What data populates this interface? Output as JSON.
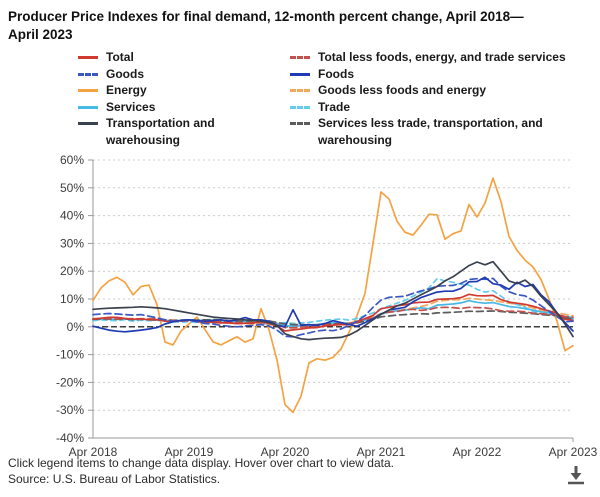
{
  "title": "Producer Price Indexes for final demand, 12-month percent change, April 2018—April 2023",
  "legend": {
    "columns": [
      [
        "Total",
        "Goods",
        "Energy",
        "Services",
        "Transportation and warehousing"
      ],
      [
        "Total less foods, energy, and trade services",
        "Foods",
        "Goods less foods and energy",
        "Trade",
        "Services less trade, transportation, and warehousing"
      ]
    ]
  },
  "footer": {
    "instructions": "Click legend items to change data display. Hover over chart to view data.",
    "source": "Source: U.S. Bureau of Labor Statistics.",
    "download_icon": "download-arrow-to-tray"
  },
  "chart_data": {
    "type": "line",
    "title": "Producer Price Indexes for final demand, 12-month percent change, April 2018—April 2023",
    "x_axis": {
      "labels": [
        "Apr 2018",
        "Apr 2019",
        "Apr 2020",
        "Apr 2021",
        "Apr 2022",
        "Apr 2023"
      ],
      "months_total": 61,
      "label_every_months": 12
    },
    "y_axis": {
      "ticks": [
        60,
        50,
        40,
        30,
        20,
        10,
        0,
        -10,
        -20,
        -30,
        -40
      ],
      "unit": "%",
      "min": -40,
      "max": 60
    },
    "grid": {
      "horizontal_dotted": true,
      "grid_color": "#cccccc",
      "axis_color": "#999999",
      "zero_line": {
        "color": "#000000",
        "style": "dashed"
      }
    },
    "legend_position": "top",
    "series": [
      {
        "name": "Energy",
        "color": "#f5a243",
        "dash": "",
        "values": [
          9.5,
          14.0,
          16.5,
          17.8,
          16.0,
          11.5,
          14.5,
          15.0,
          8.0,
          -5.5,
          -6.5,
          -1.5,
          1.0,
          3.5,
          -1.0,
          -5.4,
          -6.5,
          -5.0,
          -3.6,
          -5.5,
          -4.3,
          6.5,
          -1.0,
          -12.0,
          -28.0,
          -30.8,
          -25.0,
          -13.0,
          -11.5,
          -12.0,
          -11.0,
          -8.0,
          -2.0,
          4.0,
          12.0,
          30.0,
          48.5,
          46.0,
          38.0,
          34.0,
          33.0,
          36.5,
          40.5,
          40.3,
          31.5,
          33.5,
          34.5,
          44.0,
          39.5,
          44.5,
          53.5,
          45.0,
          32.5,
          27.5,
          24.0,
          21.5,
          17.0,
          10.0,
          2.0,
          -8.6,
          -6.8
        ]
      },
      {
        "name": "Goods less foods and energy",
        "color": "#f0a85c",
        "dash": "7,4",
        "values": [
          2.5,
          2.6,
          2.7,
          2.8,
          2.8,
          2.9,
          2.9,
          3.0,
          2.8,
          2.6,
          2.4,
          2.2,
          2.0,
          1.8,
          1.6,
          1.5,
          1.4,
          1.3,
          1.2,
          1.1,
          1.0,
          0.9,
          0.8,
          0.6,
          0.3,
          0.2,
          0.3,
          0.4,
          0.6,
          0.8,
          1.0,
          1.2,
          1.4,
          2.0,
          2.8,
          3.8,
          4.6,
          5.3,
          5.8,
          6.2,
          6.8,
          7.3,
          8.0,
          9.2,
          9.5,
          9.7,
          9.8,
          10.2,
          10.0,
          9.7,
          9.5,
          9.0,
          8.5,
          8.2,
          7.5,
          6.8,
          6.0,
          5.5,
          5.0,
          4.5,
          4.0
        ]
      },
      {
        "name": "Trade",
        "color": "#63cbec",
        "dash": "5,4",
        "values": [
          2.2,
          2.5,
          2.3,
          2.2,
          2.6,
          2.0,
          2.4,
          2.2,
          2.4,
          2.0,
          1.8,
          1.7,
          1.8,
          1.6,
          1.8,
          2.0,
          1.8,
          1.5,
          1.2,
          1.8,
          1.6,
          1.4,
          1.0,
          1.2,
          1.5,
          1.2,
          1.4,
          1.6,
          2.0,
          2.4,
          2.6,
          2.8,
          2.4,
          3.0,
          4.0,
          5.0,
          6.5,
          7.5,
          8.5,
          9.5,
          11.0,
          12.5,
          14.0,
          17.3,
          16.5,
          16.0,
          15.3,
          15.0,
          13.5,
          12.5,
          13.0,
          11.0,
          9.0,
          8.0,
          7.0,
          5.5,
          4.8,
          4.5,
          4.2,
          3.8,
          3.5
        ]
      },
      {
        "name": "Services",
        "color": "#49b8e6",
        "dash": "",
        "values": [
          2.7,
          2.8,
          2.8,
          2.7,
          2.9,
          2.5,
          2.8,
          2.5,
          2.4,
          2.3,
          2.2,
          2.3,
          2.4,
          2.3,
          2.4,
          2.5,
          2.3,
          2.0,
          1.8,
          2.1,
          2.0,
          2.2,
          1.8,
          1.2,
          0.4,
          0.2,
          0.4,
          0.5,
          0.8,
          1.2,
          1.4,
          1.4,
          1.2,
          1.6,
          2.4,
          3.0,
          4.8,
          5.2,
          5.8,
          6.0,
          6.4,
          6.8,
          6.5,
          7.8,
          8.0,
          8.2,
          8.6,
          9.4,
          8.8,
          8.5,
          8.7,
          8.0,
          7.3,
          7.0,
          6.5,
          6.0,
          5.4,
          5.0,
          4.6,
          3.2,
          2.9
        ]
      },
      {
        "name": "Services less trade, transportation, and warehousing",
        "color": "#5c5c5c",
        "dash": "7,4",
        "values": [
          2.7,
          2.8,
          2.8,
          2.7,
          2.8,
          2.6,
          2.7,
          2.6,
          2.4,
          2.4,
          2.3,
          2.4,
          2.5,
          2.4,
          2.5,
          2.6,
          2.4,
          2.2,
          2.1,
          2.1,
          2.1,
          2.3,
          2.1,
          1.6,
          1.0,
          0.8,
          0.8,
          0.7,
          0.8,
          1.0,
          1.1,
          1.1,
          1.1,
          1.4,
          2.0,
          2.6,
          3.6,
          3.9,
          4.2,
          4.4,
          4.6,
          4.7,
          4.6,
          5.0,
          5.1,
          5.2,
          5.4,
          5.6,
          5.5,
          5.6,
          5.7,
          5.5,
          5.2,
          5.1,
          4.9,
          4.7,
          4.4,
          4.2,
          4.0,
          3.2,
          2.9
        ]
      },
      {
        "name": "Total less foods, energy, and trade services",
        "color": "#c4524c",
        "dash": "7,4",
        "values": [
          2.9,
          3.0,
          2.9,
          2.8,
          2.9,
          2.9,
          2.8,
          2.8,
          2.8,
          2.5,
          2.3,
          2.0,
          2.2,
          2.1,
          2.1,
          1.7,
          1.9,
          1.7,
          1.5,
          1.3,
          1.5,
          1.5,
          1.4,
          1.0,
          -0.3,
          -0.4,
          -0.1,
          0.1,
          0.3,
          0.7,
          0.8,
          0.9,
          1.1,
          2.0,
          2.8,
          3.1,
          4.6,
          5.3,
          5.5,
          6.1,
          6.3,
          5.9,
          6.2,
          6.9,
          7.0,
          6.9,
          6.6,
          7.0,
          6.9,
          6.8,
          6.4,
          5.8,
          5.6,
          5.6,
          5.4,
          4.9,
          4.7,
          4.5,
          4.4,
          3.7,
          3.4
        ]
      },
      {
        "name": "Total",
        "color": "#d03a30",
        "dash": "",
        "values": [
          2.7,
          3.1,
          3.4,
          3.4,
          3.0,
          2.7,
          2.9,
          2.5,
          2.6,
          2.0,
          1.9,
          2.2,
          2.4,
          1.9,
          1.6,
          1.7,
          1.4,
          1.4,
          1.1,
          1.3,
          1.3,
          2.0,
          1.2,
          0.3,
          -1.5,
          -1.1,
          -0.8,
          -0.4,
          -0.3,
          0.3,
          0.6,
          0.8,
          0.8,
          1.6,
          3.0,
          4.1,
          6.5,
          7.0,
          7.6,
          7.9,
          8.6,
          8.8,
          8.9,
          9.9,
          10.0,
          10.1,
          10.5,
          11.7,
          11.2,
          11.1,
          11.3,
          9.8,
          8.9,
          8.5,
          8.1,
          7.4,
          6.5,
          5.7,
          4.9,
          2.7,
          2.3
        ]
      },
      {
        "name": "Goods",
        "color": "#3b57c4",
        "dash": "7,4",
        "values": [
          4.4,
          4.6,
          4.8,
          4.6,
          4.4,
          4.2,
          4.4,
          3.8,
          3.2,
          2.5,
          2.0,
          2.2,
          2.4,
          1.8,
          1.2,
          1.0,
          0.5,
          0.2,
          0.0,
          0.3,
          0.5,
          0.8,
          0.3,
          -1.2,
          -3.4,
          -3.6,
          -2.8,
          -2.2,
          -1.5,
          -1.2,
          -1.4,
          -0.8,
          0.5,
          2.0,
          4.0,
          7.0,
          9.6,
          10.6,
          10.8,
          11.0,
          12.0,
          12.9,
          13.6,
          14.6,
          14.8,
          14.9,
          15.6,
          17.0,
          17.3,
          17.1,
          17.4,
          14.6,
          12.6,
          11.6,
          11.1,
          9.6,
          7.6,
          5.6,
          3.6,
          1.8,
          2.0
        ]
      },
      {
        "name": "Foods",
        "color": "#1f3bb3",
        "dash": "",
        "values": [
          0.2,
          -0.5,
          -1.2,
          -1.6,
          -1.8,
          -1.5,
          -1.2,
          -0.8,
          -0.3,
          1.0,
          1.8,
          2.3,
          2.5,
          2.2,
          2.0,
          2.2,
          2.5,
          2.0,
          2.5,
          3.3,
          2.5,
          2.5,
          2.0,
          0.5,
          0.0,
          6.1,
          0.5,
          0.8,
          0.5,
          1.2,
          2.2,
          1.5,
          0.8,
          0.2,
          1.5,
          3.0,
          4.5,
          6.0,
          6.5,
          7.0,
          9.0,
          10.5,
          11.5,
          12.5,
          12.8,
          12.8,
          13.8,
          16.2,
          16.3,
          17.8,
          15.5,
          15.0,
          13.5,
          16.0,
          14.5,
          15.2,
          11.5,
          9.0,
          5.0,
          1.5,
          -1.5
        ]
      },
      {
        "name": "Transportation and warehousing",
        "color": "#3a414f",
        "dash": "",
        "values": [
          6.3,
          6.5,
          6.7,
          6.8,
          6.9,
          7.0,
          7.2,
          7.0,
          6.8,
          6.5,
          6.0,
          5.5,
          5.0,
          4.5,
          4.0,
          3.5,
          3.2,
          3.0,
          2.8,
          2.5,
          2.3,
          2.0,
          1.5,
          0.5,
          -2.5,
          -3.5,
          -4.3,
          -4.6,
          -4.3,
          -4.1,
          -4.0,
          -3.8,
          -3.0,
          -1.5,
          0.5,
          2.5,
          4.5,
          6.0,
          7.5,
          8.5,
          10.0,
          11.5,
          13.0,
          14.5,
          16.5,
          18.0,
          20.0,
          22.0,
          23.3,
          22.3,
          23.4,
          20.0,
          16.5,
          15.5,
          16.8,
          14.5,
          11.0,
          8.0,
          5.0,
          1.0,
          -3.5
        ]
      }
    ]
  }
}
